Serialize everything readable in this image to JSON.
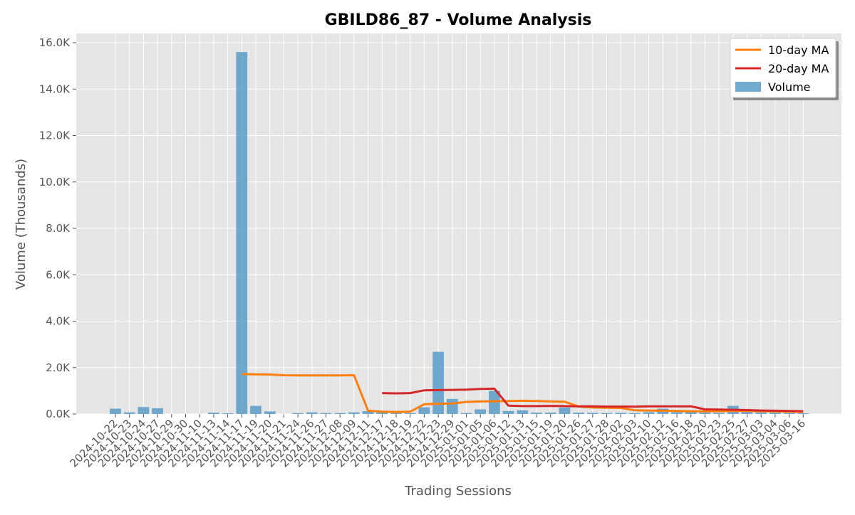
{
  "chart_data": {
    "type": "bar",
    "title": "GBILD86_87 - Volume Analysis",
    "xlabel": "Trading Sessions",
    "ylabel": "Volume (Thousands)",
    "ylim": [
      0,
      16400
    ],
    "yticks": [
      0,
      2000,
      4000,
      6000,
      8000,
      10000,
      12000,
      14000,
      16000
    ],
    "ytick_labels": [
      "0.0K",
      "2.0K",
      "4.0K",
      "6.0K",
      "8.0K",
      "10.0K",
      "12.0K",
      "14.0K",
      "16.0K"
    ],
    "grid": true,
    "legend_position": "top-right",
    "categories": [
      "2024-10-22",
      "2024-10-23",
      "2024-10-24",
      "2024-10-27",
      "2024-10-29",
      "2024-10-30",
      "2024-11-10",
      "2024-11-13",
      "2024-11-14",
      "2024-11-17",
      "2024-11-19",
      "2024-11-20",
      "2024-11-21",
      "2024-11-24",
      "2024-11-26",
      "2024-11-27",
      "2024-12-08",
      "2024-12-09",
      "2024-12-11",
      "2024-12-17",
      "2024-12-18",
      "2024-12-19",
      "2024-12-22",
      "2024-12-23",
      "2024-12-29",
      "2025-01-01",
      "2025-01-05",
      "2025-01-06",
      "2025-01-12",
      "2025-01-13",
      "2025-01-15",
      "2025-01-19",
      "2025-01-20",
      "2025-01-26",
      "2025-01-27",
      "2025-01-28",
      "2025-02-02",
      "2025-02-03",
      "2025-02-10",
      "2025-02-12",
      "2025-02-16",
      "2025-02-18",
      "2025-02-20",
      "2025-02-23",
      "2025-02-25",
      "2025-02-27",
      "2025-03-03",
      "2025-03-04",
      "2025-03-06",
      "2025-03-16"
    ],
    "series": [
      {
        "name": "Volume",
        "kind": "bar",
        "color": "#5b9bc8",
        "values": [
          230,
          70,
          300,
          250,
          0,
          0,
          0,
          60,
          30,
          15600,
          350,
          110,
          0,
          40,
          70,
          40,
          40,
          70,
          120,
          80,
          40,
          40,
          290,
          2680,
          650,
          40,
          200,
          1000,
          130,
          160,
          60,
          60,
          280,
          60,
          50,
          40,
          50,
          40,
          80,
          230,
          80,
          90,
          60,
          50,
          350,
          100,
          70,
          60,
          40,
          30
        ]
      },
      {
        "name": "10-day MA",
        "kind": "line",
        "color": "#ff7f0e",
        "values": [
          null,
          null,
          null,
          null,
          null,
          null,
          null,
          null,
          null,
          1720,
          1710,
          1700,
          1670,
          1660,
          1660,
          1660,
          1660,
          1670,
          140,
          100,
          90,
          100,
          420,
          440,
          450,
          520,
          540,
          550,
          560,
          570,
          560,
          540,
          530,
          320,
          280,
          270,
          260,
          160,
          150,
          140,
          130,
          120,
          110,
          120,
          130,
          130,
          120,
          110,
          100,
          90
        ]
      },
      {
        "name": "20-day MA",
        "kind": "line",
        "color": "#d62728",
        "values": [
          null,
          null,
          null,
          null,
          null,
          null,
          null,
          null,
          null,
          null,
          null,
          null,
          null,
          null,
          null,
          null,
          null,
          null,
          null,
          900,
          890,
          900,
          1020,
          1030,
          1040,
          1050,
          1080,
          1090,
          360,
          340,
          340,
          350,
          340,
          330,
          330,
          320,
          320,
          320,
          330,
          330,
          330,
          330,
          200,
          190,
          180,
          170,
          150,
          140,
          130,
          120
        ]
      }
    ]
  }
}
